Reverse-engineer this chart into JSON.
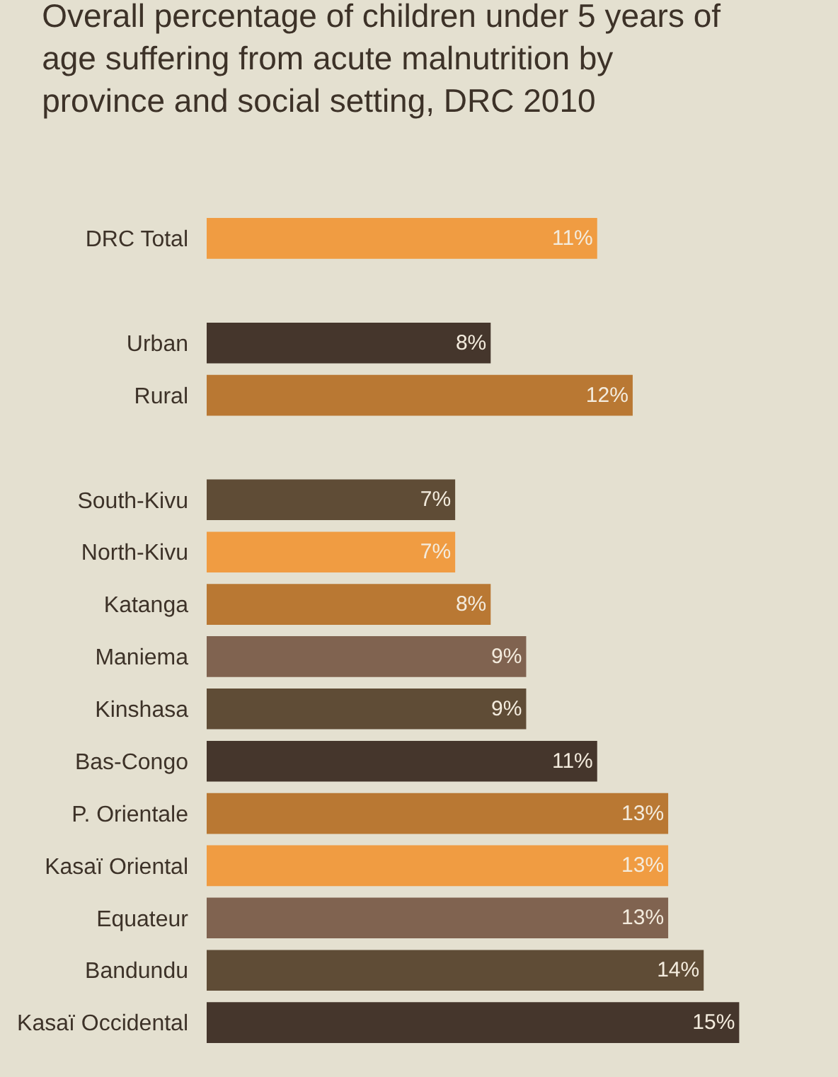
{
  "chart_data": {
    "type": "bar",
    "orientation": "horizontal",
    "title": "Overall percentage of children under 5 years of age suffering from acute malnutrition by province and social setting, DRC 2010",
    "categories": [
      "DRC Total",
      null,
      "Urban",
      "Rural",
      null,
      "South-Kivu",
      "North-Kivu",
      "Katanga",
      "Maniema",
      "Kinshasa",
      "Bas-Congo",
      "P. Orientale",
      "Kasaï Oriental",
      "Equateur",
      "Bandundu",
      "Kasaï Occidental"
    ],
    "values": [
      11,
      null,
      8,
      12,
      null,
      7,
      7,
      8,
      9,
      9,
      11,
      13,
      13,
      13,
      14,
      15
    ],
    "value_labels": [
      "11%",
      null,
      "8%",
      "12%",
      null,
      "7%",
      "7%",
      "8%",
      "9%",
      "9%",
      "11%",
      "13%",
      "13%",
      "13%",
      "14%",
      "15%"
    ],
    "colors": [
      "#f09c42",
      null,
      "#45362c",
      "#b97833",
      null,
      "#5f4c36",
      "#f09c42",
      "#b97833",
      "#806350",
      "#5f4c36",
      "#45362c",
      "#b97833",
      "#f09c42",
      "#806350",
      "#5f4c36",
      "#45362c"
    ],
    "grid": false,
    "legend": false,
    "tick_labels": "y"
  }
}
